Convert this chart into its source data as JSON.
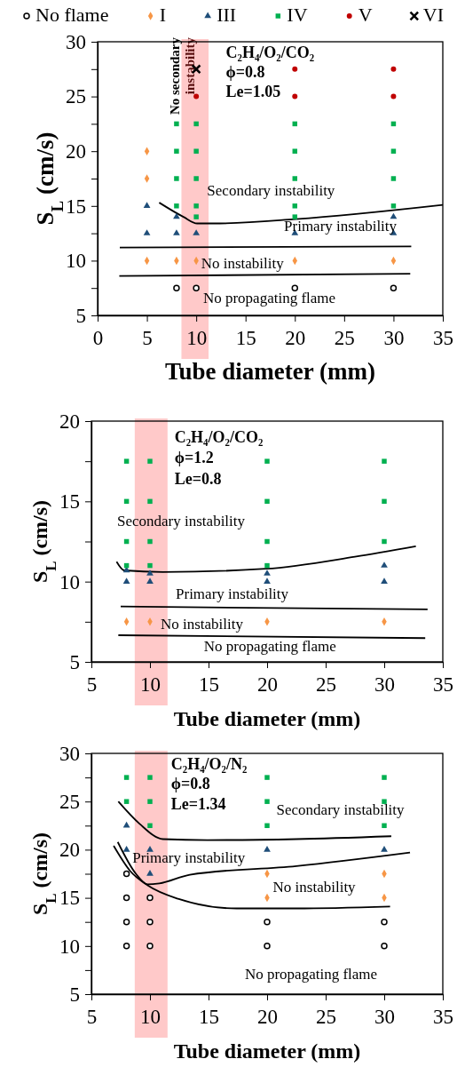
{
  "chart_data": [
    {
      "type": "scatter",
      "xlabel": "Tube diameter (mm)",
      "ylabel": "S$_{L}$ (cm/s)",
      "legend": "top",
      "xlim": [
        0,
        35
      ],
      "xticks": [
        0,
        5,
        10,
        15,
        20,
        25,
        30,
        35
      ],
      "ylim": [
        5,
        30
      ],
      "yticks": [
        5,
        {
          "value": 7.5,
          "label": null
        },
        10,
        {
          "value": 12.5,
          "label": null
        },
        15,
        {
          "value": 17.5,
          "label": null
        },
        20,
        {
          "value": 22.5,
          "label": null
        },
        25,
        {
          "value": 27.5,
          "label": null
        },
        30
      ],
      "bands": [
        {
          "axis": "x",
          "from": 8.5,
          "to": 11.25,
          "label": "No secondary instability",
          "color": "#ffc9c9"
        }
      ],
      "series": [
        {
          "name": "No flame",
          "color": "#000000",
          "marker": "circle",
          "x": [
            8,
            10,
            20,
            30
          ],
          "values": [
            7.5,
            7.5,
            7.5,
            7.5
          ]
        },
        {
          "name": "I",
          "color": "#f79646",
          "marker": "diamond",
          "x": [
            5,
            5,
            5,
            8,
            10,
            20,
            30
          ],
          "values": [
            20,
            17.5,
            10,
            10,
            10,
            10,
            10
          ]
        },
        {
          "name": "III",
          "color": "#1f4e79",
          "marker": "triangle",
          "x": [
            5,
            5,
            8,
            8,
            10,
            20,
            30,
            30
          ],
          "values": [
            15,
            12.5,
            14,
            12.5,
            12.5,
            12.5,
            14,
            12.5
          ]
        },
        {
          "name": "IV",
          "color": "#00b050",
          "marker": "square",
          "x": [
            8,
            8,
            8,
            8,
            10,
            10,
            10,
            10,
            10,
            20,
            20,
            20,
            20,
            20,
            30,
            30,
            30,
            30
          ],
          "values": [
            22.5,
            20,
            17.5,
            15,
            22.5,
            20,
            17.5,
            15,
            14,
            22.5,
            20,
            17.5,
            15,
            14,
            22.5,
            20,
            17.5,
            15
          ]
        },
        {
          "name": "V",
          "color": "#c00000",
          "marker": "circle",
          "x": [
            10,
            20,
            20,
            30,
            30
          ],
          "values": [
            25,
            27.5,
            25,
            27.5,
            25
          ]
        },
        {
          "name": "VI",
          "color": "#000000",
          "marker": "cross",
          "x": [
            10
          ],
          "values": [
            27.5
          ]
        },
        {
          "type": "line",
          "color": "#000000",
          "marker": "none",
          "x": [
            6.25,
            8.7,
            10.1,
            11.7,
            20.1,
            35
          ],
          "values": [
            15.3,
            14.0,
            13.4,
            13.4,
            13.8,
            15.1
          ]
        },
        {
          "type": "line",
          "color": "#000000",
          "marker": "none",
          "x": [
            2.25,
            31.8
          ],
          "values": [
            11.2,
            11.3
          ]
        },
        {
          "type": "line",
          "color": "#000000",
          "marker": "none",
          "x": [
            2.2,
            31.7
          ],
          "values": [
            8.6,
            8.8
          ]
        }
      ],
      "annotations": [
        "C₂H₄/O₂/CO₂",
        "ϕ=0.8",
        "Le=1.05",
        "Secondary instability",
        "Primary instability",
        "No instability",
        "No propagating flame"
      ]
    },
    {
      "type": "scatter",
      "xlabel": "Tube diameter (mm)",
      "ylabel": "S$_{L}$ (cm/s)",
      "xlim": [
        5,
        35
      ],
      "xticks": [
        5,
        10,
        15,
        20,
        25,
        30,
        35
      ],
      "ylim": [
        5,
        20
      ],
      "yticks": [
        5,
        {
          "value": 7.5,
          "label": null
        },
        10,
        {
          "value": 12.5,
          "label": null
        },
        15,
        {
          "value": 17.5,
          "label": null
        },
        20
      ],
      "bands": [
        {
          "axis": "x",
          "from": 8.7,
          "to": 11.5,
          "color": "#ffc9c9"
        }
      ],
      "series": [
        {
          "color": "#f79646",
          "marker": "diamond",
          "x": [
            8,
            10,
            20,
            30
          ],
          "values": [
            7.5,
            7.5,
            7.5,
            7.5
          ]
        },
        {
          "color": "#1f4e79",
          "marker": "triangle",
          "x": [
            8,
            8,
            10,
            10,
            20,
            20,
            30,
            30
          ],
          "values": [
            10.7,
            10,
            10.5,
            10,
            10.5,
            10,
            11,
            10
          ]
        },
        {
          "color": "#00b050",
          "marker": "square",
          "x": [
            8,
            8,
            8,
            8,
            10,
            10,
            10,
            10,
            20,
            20,
            20,
            20,
            30,
            30,
            30
          ],
          "values": [
            17.5,
            15,
            12.5,
            11,
            17.5,
            15,
            12.5,
            11,
            17.5,
            15,
            12.5,
            11,
            17.5,
            15,
            12.5
          ]
        },
        {
          "type": "line",
          "color": "#000000",
          "marker": "none",
          "x": [
            7.15,
            7.8,
            11.1,
            19.9,
            27.5,
            32.7
          ],
          "values": [
            11.24,
            10.7,
            10.6,
            10.8,
            11.55,
            12.2
          ]
        },
        {
          "type": "line",
          "color": "#000000",
          "marker": "none",
          "x": [
            7.5,
            33.7
          ],
          "values": [
            8.45,
            8.27
          ]
        },
        {
          "type": "line",
          "color": "#000000",
          "marker": "none",
          "x": [
            7.3,
            33.5
          ],
          "values": [
            6.66,
            6.48
          ]
        }
      ],
      "annotations": [
        "C₂H₄/O₂/CO₂",
        "ϕ=1.2",
        "Le=0.8",
        "Secondary instability",
        "Primary instability",
        "No instability",
        "No propagating flame"
      ]
    },
    {
      "type": "scatter",
      "xlabel": "Tube diameter (mm)",
      "ylabel": "S$_{L}$ (cm/s)",
      "xlim": [
        5,
        35
      ],
      "xticks": [
        5,
        10,
        15,
        20,
        25,
        30,
        35
      ],
      "ylim": [
        5,
        30
      ],
      "yticks": [
        5,
        {
          "value": 7.5,
          "label": null
        },
        10,
        {
          "value": 12.5,
          "label": null
        },
        15,
        {
          "value": 17.5,
          "label": null
        },
        20,
        {
          "value": 22.5,
          "label": null
        },
        25,
        {
          "value": 27.5,
          "label": null
        },
        30
      ],
      "bands": [
        {
          "axis": "x",
          "from": 8.7,
          "to": 11.5,
          "color": "#ffc9c9"
        }
      ],
      "series": [
        {
          "color": "#000000",
          "marker": "circle",
          "x": [
            8,
            8,
            8,
            8,
            10,
            10,
            10,
            20,
            20,
            30,
            30
          ],
          "values": [
            17.5,
            15,
            12.5,
            10,
            15,
            12.5,
            10,
            12.5,
            10,
            12.5,
            10
          ]
        },
        {
          "color": "#f79646",
          "marker": "diamond",
          "x": [
            20,
            20,
            30,
            30
          ],
          "values": [
            17.5,
            15,
            17.5,
            15
          ]
        },
        {
          "color": "#1f4e79",
          "marker": "triangle",
          "x": [
            8,
            8,
            10,
            10,
            20,
            30
          ],
          "values": [
            22.5,
            20,
            20,
            17.5,
            20,
            20
          ]
        },
        {
          "color": "#00b050",
          "marker": "square",
          "x": [
            8,
            8,
            10,
            10,
            10,
            20,
            20,
            20,
            30,
            30,
            30
          ],
          "values": [
            27.5,
            25,
            27.5,
            25,
            22.5,
            27.5,
            25,
            22.5,
            27.5,
            25,
            22.5
          ]
        },
        {
          "type": "line",
          "color": "#000000",
          "marker": "none",
          "x": [
            7.3,
            9.1,
            11.1,
            14.9,
            22.5,
            30.6
          ],
          "values": [
            25.0,
            22.7,
            21.1,
            21.0,
            21.1,
            21.4
          ]
        },
        {
          "type": "line",
          "color": "#000000",
          "marker": "none",
          "x": [
            7.25,
            8.8,
            9.8,
            10.8,
            13.4,
            22.5,
            32.2
          ],
          "values": [
            20.8,
            17.5,
            16.4,
            16.5,
            17.4,
            18.3,
            19.7
          ]
        },
        {
          "type": "line",
          "color": "#000000",
          "marker": "none",
          "x": [
            6.9,
            8.3,
            9.8,
            12.4,
            17.4,
            22.5,
            30.5
          ],
          "values": [
            20.4,
            17.8,
            16.3,
            14.9,
            13.9,
            13.9,
            14.1
          ]
        }
      ],
      "annotations": [
        "C₂H₄/O₂/N₂",
        "ϕ=0.8",
        "Le=1.34",
        "Secondary instability",
        "Primary instability",
        "No instability",
        "No propagating flame"
      ]
    }
  ]
}
